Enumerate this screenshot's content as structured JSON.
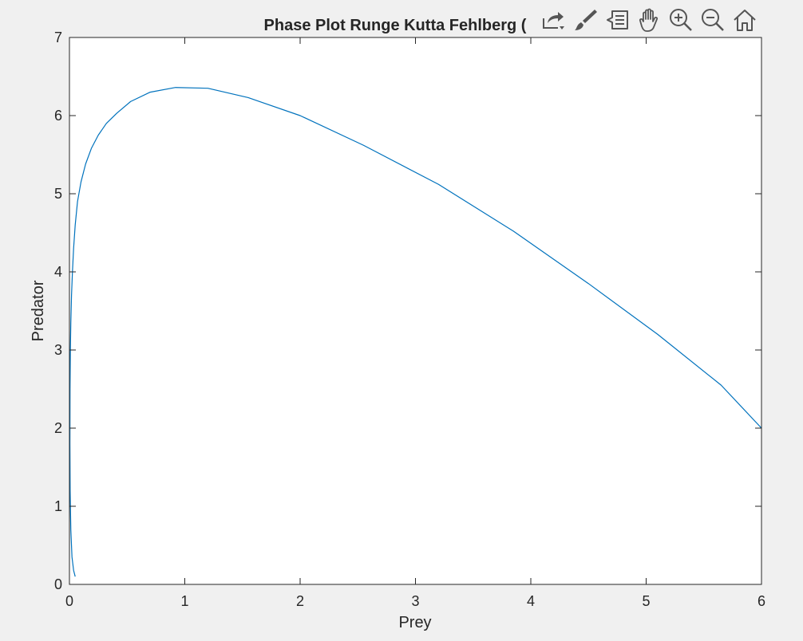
{
  "chart_data": {
    "type": "line",
    "title": "Phase Plot Runge Kutta Fehlberg (",
    "xlabel": "Prey",
    "ylabel": "Predator",
    "xlim": [
      0,
      6
    ],
    "ylim": [
      0,
      7
    ],
    "xticks": [
      "0",
      "1",
      "2",
      "3",
      "4",
      "5",
      "6"
    ],
    "yticks": [
      "0",
      "1",
      "2",
      "3",
      "4",
      "5",
      "6",
      "7"
    ],
    "grid": false,
    "colors": {
      "series": "#0072bd",
      "axes": "#262626",
      "background": "#ffffff",
      "figure": "#f0f0f0"
    },
    "series": [
      {
        "x": [
          0.05,
          0.036,
          0.022,
          0.012,
          0.006,
          0.004,
          0.005,
          0.008,
          0.012,
          0.018,
          0.026,
          0.036,
          0.05,
          0.07,
          0.1,
          0.14,
          0.19,
          0.25,
          0.32,
          0.41,
          0.53,
          0.7,
          0.92,
          1.2,
          1.55,
          2.0,
          2.55,
          3.2,
          3.85,
          4.5,
          5.1,
          5.65,
          6.0
        ],
        "y": [
          0.1,
          0.18,
          0.35,
          0.7,
          1.2,
          1.8,
          2.5,
          3.0,
          3.35,
          3.7,
          4.0,
          4.3,
          4.6,
          4.9,
          5.15,
          5.38,
          5.58,
          5.75,
          5.9,
          6.03,
          6.18,
          6.3,
          6.36,
          6.35,
          6.23,
          6.0,
          5.62,
          5.12,
          4.52,
          3.85,
          3.2,
          2.55,
          2.0
        ]
      }
    ]
  },
  "toolbar": {
    "items": [
      {
        "name": "export-icon"
      },
      {
        "name": "brush-icon"
      },
      {
        "name": "data-tips-icon"
      },
      {
        "name": "pan-icon"
      },
      {
        "name": "zoom-in-icon"
      },
      {
        "name": "zoom-out-icon"
      },
      {
        "name": "home-icon"
      }
    ]
  }
}
